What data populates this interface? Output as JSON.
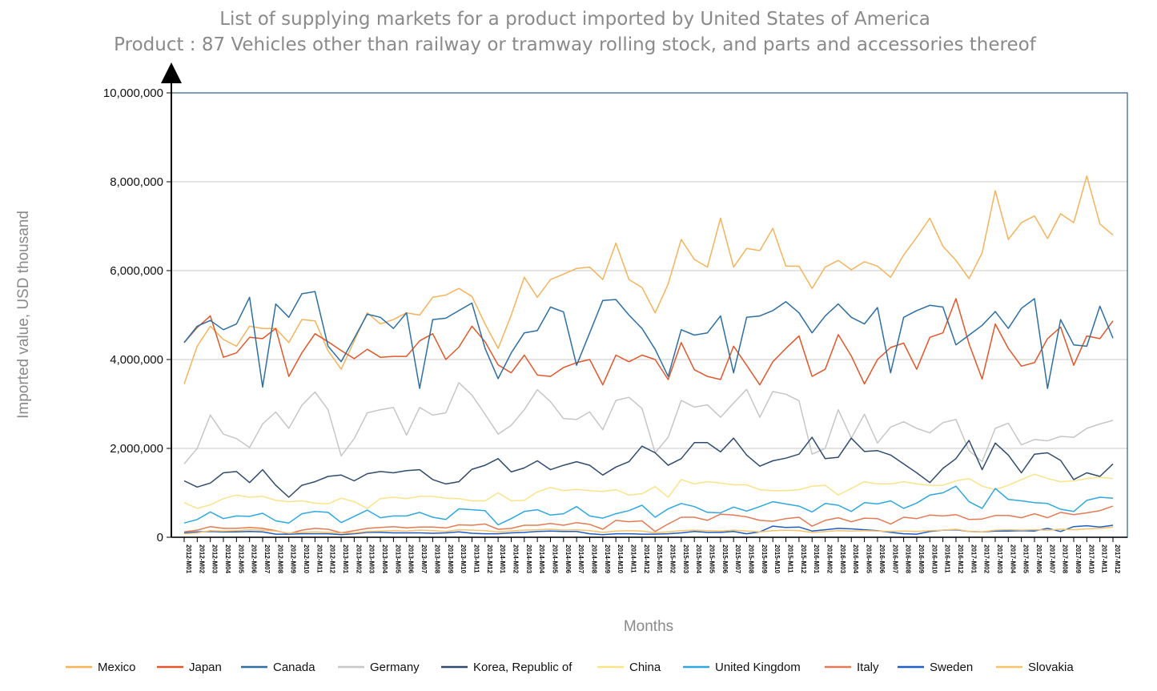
{
  "chart_data": {
    "type": "line",
    "title": "List of supplying markets for a product imported by United States of America",
    "subtitle": "Product : 87 Vehicles other than railway or tramway rolling stock, and parts and accessories thereof",
    "xlabel": "Months",
    "ylabel": "Imported value, USD thousand",
    "ylim": [
      0,
      10000000
    ],
    "yticks": [
      0,
      2000000,
      4000000,
      6000000,
      8000000,
      10000000
    ],
    "ytick_labels": [
      "0",
      "2,000,000",
      "4,000,000",
      "6,000,000",
      "8,000,000",
      "10,000,000"
    ],
    "grid": true,
    "legend_position": "bottom",
    "x": [
      "2012-M01",
      "2012-M02",
      "2012-M03",
      "2012-M04",
      "2012-M05",
      "2012-M06",
      "2012-M07",
      "2012-M08",
      "2012-M09",
      "2012-M10",
      "2012-M11",
      "2012-M12",
      "2013-M01",
      "2013-M02",
      "2013-M03",
      "2013-M04",
      "2013-M05",
      "2013-M06",
      "2013-M07",
      "2013-M08",
      "2013-M09",
      "2013-M10",
      "2013-M11",
      "2013-M12",
      "2014-M01",
      "2014-M02",
      "2014-M03",
      "2014-M04",
      "2014-M05",
      "2014-M06",
      "2014-M07",
      "2014-M08",
      "2014-M09",
      "2014-M10",
      "2014-M11",
      "2014-M12",
      "2015-M01",
      "2015-M02",
      "2015-M03",
      "2015-M04",
      "2015-M05",
      "2015-M06",
      "2015-M07",
      "2015-M08",
      "2015-M09",
      "2015-M10",
      "2015-M11",
      "2015-M12",
      "2016-M01",
      "2016-M02",
      "2016-M03",
      "2016-M04",
      "2016-M05",
      "2016-M06",
      "2016-M07",
      "2016-M08",
      "2016-M09",
      "2016-M10",
      "2016-M11",
      "2016-M12",
      "2017-M01",
      "2017-M02",
      "2017-M03",
      "2017-M04",
      "2017-M05",
      "2017-M06",
      "2017-M07",
      "2017-M08",
      "2017-M09",
      "2017-M10",
      "2017-M11",
      "2017-M12"
    ],
    "series": [
      {
        "name": "Mexico",
        "color": "#f6b35b",
        "values": [
          3450000,
          4300000,
          4750000,
          4450000,
          4300000,
          4750000,
          4700000,
          4700000,
          4380000,
          4900000,
          4870000,
          4200000,
          3780000,
          4420000,
          5050000,
          4800000,
          4900000,
          5050000,
          5000000,
          5400000,
          5450000,
          5600000,
          5420000,
          4800000,
          4250000,
          5000000,
          5850000,
          5400000,
          5800000,
          5920000,
          6050000,
          6080000,
          5800000,
          6620000,
          5800000,
          5620000,
          5050000,
          5700000,
          6700000,
          6250000,
          6080000,
          7180000,
          6080000,
          6500000,
          6450000,
          6950000,
          6100000,
          6100000,
          5600000,
          6080000,
          6230000,
          6020000,
          6200000,
          6100000,
          5850000,
          6350000,
          6750000,
          7180000,
          6550000,
          6230000,
          5820000,
          6400000,
          7800000,
          6700000,
          7080000,
          7230000,
          6720000,
          7280000,
          7080000,
          8130000,
          7050000,
          6800000
        ]
      },
      {
        "name": "Japan",
        "color": "#e2572a",
        "values": [
          4380000,
          4720000,
          4980000,
          4050000,
          4150000,
          4500000,
          4470000,
          4700000,
          3620000,
          4150000,
          4580000,
          4400000,
          4200000,
          4020000,
          4230000,
          4050000,
          4070000,
          4070000,
          4420000,
          4580000,
          4000000,
          4280000,
          4750000,
          4400000,
          3880000,
          3700000,
          4100000,
          3650000,
          3620000,
          3820000,
          3930000,
          4000000,
          3430000,
          4100000,
          3950000,
          4100000,
          4000000,
          3550000,
          4380000,
          3770000,
          3620000,
          3550000,
          4300000,
          3870000,
          3430000,
          3950000,
          4250000,
          4530000,
          3620000,
          3780000,
          4560000,
          4080000,
          3450000,
          4000000,
          4270000,
          4370000,
          3780000,
          4500000,
          4600000,
          5370000,
          4350000,
          3560000,
          4800000,
          4250000,
          3850000,
          3930000,
          4470000,
          4730000,
          3870000,
          4530000,
          4470000,
          4870000
        ]
      },
      {
        "name": "Canada",
        "color": "#2d6fa3",
        "values": [
          4380000,
          4750000,
          4880000,
          4670000,
          4800000,
          5400000,
          3380000,
          5250000,
          4950000,
          5480000,
          5530000,
          4300000,
          3950000,
          4480000,
          5020000,
          4950000,
          4700000,
          5050000,
          3350000,
          4900000,
          4930000,
          5100000,
          5270000,
          4250000,
          3570000,
          4150000,
          4600000,
          4650000,
          5180000,
          5070000,
          3870000,
          4600000,
          5330000,
          5350000,
          5000000,
          4700000,
          4230000,
          3620000,
          4670000,
          4550000,
          4600000,
          4980000,
          3700000,
          4950000,
          4980000,
          5100000,
          5300000,
          5050000,
          4600000,
          4980000,
          5250000,
          4950000,
          4800000,
          5170000,
          3700000,
          4950000,
          5100000,
          5220000,
          5180000,
          4330000,
          4550000,
          4770000,
          5080000,
          4700000,
          5150000,
          5370000,
          3350000,
          4900000,
          4330000,
          4300000,
          5200000,
          4480000
        ]
      },
      {
        "name": "Germany",
        "color": "#c6c6c6",
        "values": [
          1650000,
          2000000,
          2750000,
          2320000,
          2220000,
          2020000,
          2550000,
          2820000,
          2450000,
          2970000,
          3270000,
          2870000,
          1830000,
          2220000,
          2800000,
          2870000,
          2920000,
          2300000,
          2920000,
          2750000,
          2800000,
          3480000,
          3200000,
          2770000,
          2320000,
          2520000,
          2870000,
          3320000,
          3050000,
          2670000,
          2650000,
          2820000,
          2420000,
          3080000,
          3150000,
          2900000,
          1900000,
          2250000,
          3080000,
          2930000,
          2980000,
          2700000,
          3020000,
          3330000,
          2700000,
          3280000,
          3220000,
          3070000,
          1870000,
          2000000,
          2870000,
          2230000,
          2770000,
          2120000,
          2480000,
          2600000,
          2450000,
          2350000,
          2580000,
          2650000,
          1950000,
          1700000,
          2450000,
          2570000,
          2080000,
          2200000,
          2170000,
          2270000,
          2250000,
          2450000,
          2550000,
          2630000
        ]
      },
      {
        "name": "Korea, Republic of",
        "color": "#2f4b6e",
        "values": [
          1270000,
          1130000,
          1220000,
          1450000,
          1480000,
          1230000,
          1520000,
          1170000,
          900000,
          1170000,
          1250000,
          1370000,
          1400000,
          1270000,
          1430000,
          1480000,
          1450000,
          1500000,
          1520000,
          1300000,
          1200000,
          1250000,
          1530000,
          1620000,
          1770000,
          1470000,
          1560000,
          1720000,
          1520000,
          1620000,
          1700000,
          1620000,
          1400000,
          1580000,
          1700000,
          2050000,
          1900000,
          1620000,
          1770000,
          2130000,
          2130000,
          1920000,
          2230000,
          1850000,
          1600000,
          1720000,
          1780000,
          1870000,
          2250000,
          1770000,
          1800000,
          2230000,
          1930000,
          1950000,
          1850000,
          1650000,
          1450000,
          1230000,
          1550000,
          1770000,
          2180000,
          1520000,
          2120000,
          1850000,
          1450000,
          1870000,
          1900000,
          1730000,
          1300000,
          1450000,
          1370000,
          1650000
        ]
      },
      {
        "name": "China",
        "color": "#fbe38a",
        "values": [
          780000,
          650000,
          730000,
          870000,
          950000,
          900000,
          920000,
          830000,
          800000,
          820000,
          770000,
          750000,
          880000,
          800000,
          650000,
          870000,
          900000,
          870000,
          920000,
          920000,
          880000,
          870000,
          820000,
          820000,
          1000000,
          820000,
          830000,
          1020000,
          1120000,
          1050000,
          1080000,
          1050000,
          1030000,
          1070000,
          950000,
          980000,
          1140000,
          900000,
          1300000,
          1200000,
          1250000,
          1220000,
          1180000,
          1180000,
          1070000,
          1050000,
          1050000,
          1070000,
          1150000,
          1170000,
          950000,
          1100000,
          1250000,
          1200000,
          1200000,
          1250000,
          1200000,
          1170000,
          1170000,
          1270000,
          1320000,
          1150000,
          1070000,
          1170000,
          1300000,
          1420000,
          1320000,
          1250000,
          1270000,
          1320000,
          1350000,
          1320000
        ]
      },
      {
        "name": "United Kingdom",
        "color": "#2ea8e0",
        "values": [
          320000,
          400000,
          570000,
          420000,
          480000,
          470000,
          540000,
          370000,
          320000,
          530000,
          580000,
          560000,
          330000,
          470000,
          610000,
          440000,
          480000,
          480000,
          560000,
          450000,
          400000,
          640000,
          620000,
          600000,
          280000,
          420000,
          580000,
          620000,
          500000,
          530000,
          690000,
          480000,
          430000,
          530000,
          600000,
          720000,
          450000,
          640000,
          760000,
          690000,
          560000,
          550000,
          680000,
          590000,
          690000,
          800000,
          750000,
          700000,
          570000,
          760000,
          720000,
          580000,
          780000,
          750000,
          820000,
          650000,
          770000,
          950000,
          1000000,
          1150000,
          800000,
          650000,
          1100000,
          850000,
          820000,
          780000,
          760000,
          630000,
          580000,
          830000,
          900000,
          880000
        ]
      },
      {
        "name": "Italy",
        "color": "#e37b55",
        "values": [
          120000,
          160000,
          240000,
          200000,
          200000,
          220000,
          200000,
          150000,
          80000,
          160000,
          200000,
          180000,
          100000,
          150000,
          200000,
          220000,
          240000,
          210000,
          230000,
          230000,
          210000,
          280000,
          270000,
          300000,
          180000,
          200000,
          270000,
          270000,
          310000,
          270000,
          330000,
          290000,
          180000,
          380000,
          350000,
          370000,
          130000,
          300000,
          450000,
          450000,
          380000,
          520000,
          500000,
          460000,
          380000,
          360000,
          420000,
          450000,
          250000,
          380000,
          440000,
          350000,
          430000,
          420000,
          300000,
          450000,
          420000,
          500000,
          480000,
          510000,
          400000,
          410000,
          490000,
          490000,
          440000,
          530000,
          440000,
          560000,
          510000,
          550000,
          600000,
          700000
        ]
      },
      {
        "name": "Sweden",
        "color": "#1f5fc4",
        "values": [
          100000,
          120000,
          130000,
          120000,
          120000,
          130000,
          120000,
          70000,
          70000,
          80000,
          80000,
          80000,
          60000,
          80000,
          110000,
          110000,
          100000,
          100000,
          100000,
          90000,
          100000,
          120000,
          90000,
          80000,
          80000,
          100000,
          110000,
          130000,
          140000,
          130000,
          130000,
          80000,
          60000,
          80000,
          80000,
          70000,
          70000,
          80000,
          100000,
          130000,
          110000,
          110000,
          130000,
          80000,
          120000,
          250000,
          220000,
          230000,
          140000,
          170000,
          200000,
          190000,
          170000,
          150000,
          110000,
          80000,
          70000,
          130000,
          160000,
          170000,
          130000,
          120000,
          140000,
          140000,
          150000,
          140000,
          200000,
          130000,
          240000,
          260000,
          230000,
          270000
        ]
      },
      {
        "name": "Slovakia",
        "color": "#f5c16b",
        "values": [
          80000,
          100000,
          150000,
          140000,
          150000,
          170000,
          160000,
          140000,
          90000,
          110000,
          120000,
          110000,
          90000,
          100000,
          130000,
          140000,
          150000,
          140000,
          160000,
          150000,
          130000,
          170000,
          160000,
          150000,
          120000,
          140000,
          160000,
          170000,
          180000,
          160000,
          170000,
          150000,
          110000,
          140000,
          150000,
          140000,
          100000,
          120000,
          150000,
          160000,
          150000,
          140000,
          160000,
          140000,
          120000,
          150000,
          160000,
          150000,
          110000,
          130000,
          150000,
          140000,
          150000,
          140000,
          130000,
          140000,
          130000,
          150000,
          160000,
          180000,
          130000,
          120000,
          160000,
          170000,
          160000,
          170000,
          160000,
          180000,
          170000,
          190000,
          200000,
          230000
        ]
      }
    ]
  }
}
